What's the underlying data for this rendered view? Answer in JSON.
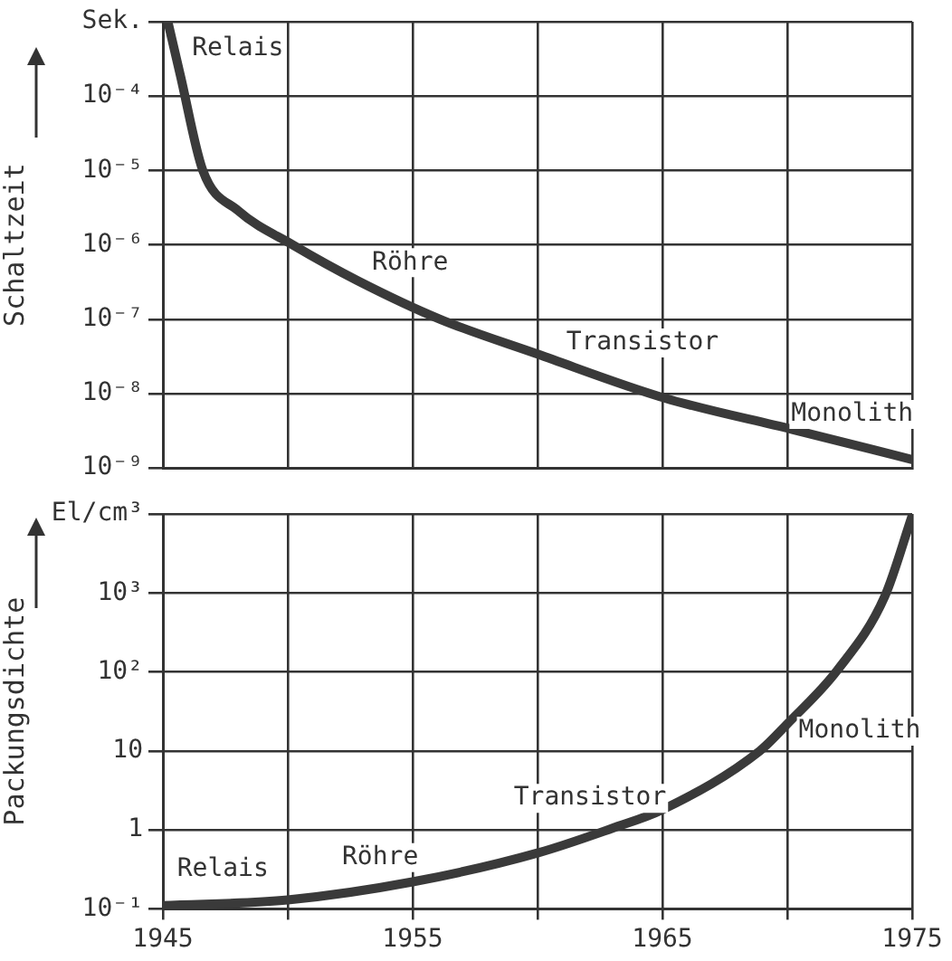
{
  "chart_data": [
    {
      "type": "line",
      "ylabel": "Schaltzeit",
      "log": "y",
      "grid": true,
      "marker": "none",
      "tick_labels": "y",
      "xlim": [
        1945,
        1975
      ],
      "xticks": [
        {
          "value": 1945,
          "label": null
        },
        {
          "value": 1950,
          "label": null
        },
        {
          "value": 1955,
          "label": null
        },
        {
          "value": 1960,
          "label": null
        },
        {
          "value": 1965,
          "label": null
        },
        {
          "value": 1970,
          "label": null
        },
        {
          "value": 1975,
          "label": null
        }
      ],
      "ylim": [
        1e-09,
        0.001
      ],
      "yticks": [
        {
          "value": 1e-09,
          "label": "10⁻⁹"
        },
        {
          "value": 1e-08,
          "label": "10⁻⁸"
        },
        {
          "value": 1e-07,
          "label": "10⁻⁷"
        },
        {
          "value": 1e-06,
          "label": "10⁻⁶"
        },
        {
          "value": 1e-05,
          "label": "10⁻⁵"
        },
        {
          "value": 0.0001,
          "label": "10⁻⁴"
        },
        {
          "value": 0.001,
          "label": "Sek."
        }
      ],
      "series": [
        {
          "color": "#3a3a3a",
          "x": [
            1945.2,
            1945.7,
            1946.6,
            1948.0,
            1950.2,
            1952.8,
            1956.1,
            1960.0,
            1965.1,
            1970.2,
            1975
          ],
          "values": [
            0.001,
            0.00019,
            1e-05,
            2.9e-06,
            1e-06,
            3.3e-07,
            1e-07,
            3.4e-08,
            8.7e-09,
            3.3e-09,
            1.3e-09
          ]
        }
      ],
      "annotations": [
        "Relais",
        "Röhre",
        "Transistor",
        "Monolith"
      ]
    },
    {
      "type": "line",
      "ylabel": "Packungsdichte",
      "log": "y",
      "grid": true,
      "marker": "none",
      "xlim": [
        1945,
        1975
      ],
      "xticks": [
        1945,
        {
          "value": 1950,
          "label": null
        },
        1955,
        {
          "value": 1960,
          "label": null
        },
        1965,
        {
          "value": 1970,
          "label": null
        },
        1975
      ],
      "ylim": [
        0.1,
        10000
      ],
      "yticks": [
        {
          "value": 0.1,
          "label": "10⁻¹"
        },
        1,
        10,
        {
          "value": 100,
          "label": "10²"
        },
        {
          "value": 1000,
          "label": "10³"
        },
        {
          "value": 10000,
          "label": "El/cm³"
        }
      ],
      "series": [
        {
          "color": "#3a3a3a",
          "x": [
            1945,
            1950,
            1955,
            1960,
            1963,
            1965,
            1968.9,
            1970,
            1972,
            1973.9,
            1975
          ],
          "values": [
            0.11,
            0.13,
            0.22,
            0.51,
            1.05,
            1.8,
            10,
            22,
            105,
            900,
            9500
          ]
        }
      ],
      "annotations": [
        "Relais",
        "Röhre",
        "Transistor",
        "Monolith"
      ]
    }
  ]
}
